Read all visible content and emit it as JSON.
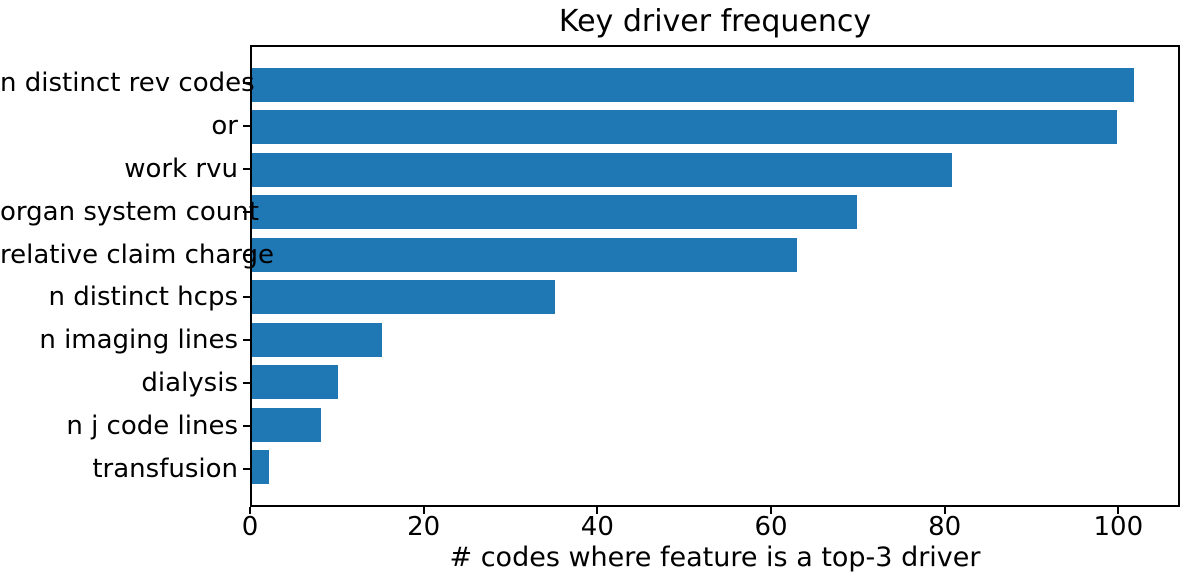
{
  "chart_data": {
    "type": "bar",
    "orientation": "horizontal",
    "title": "Key driver frequency",
    "xlabel": "# codes where feature is a top-3 driver",
    "ylabel": "",
    "categories": [
      "n distinct rev codes",
      "or",
      "work rvu",
      "organ system count",
      "relative claim charge",
      "n distinct hcps",
      "n imaging lines",
      "dialysis",
      "n j code lines",
      "transfusion"
    ],
    "values": [
      102,
      100,
      81,
      70,
      63,
      35,
      15,
      10,
      8,
      2
    ],
    "xticks": [
      0,
      20,
      40,
      60,
      80,
      100
    ],
    "xlim": [
      0,
      107.1
    ],
    "bar_color": "#1f77b4",
    "axis_color": "#000000",
    "background": "#ffffff",
    "grid": false,
    "legend": "none",
    "bar_height_fraction": 0.8
  }
}
